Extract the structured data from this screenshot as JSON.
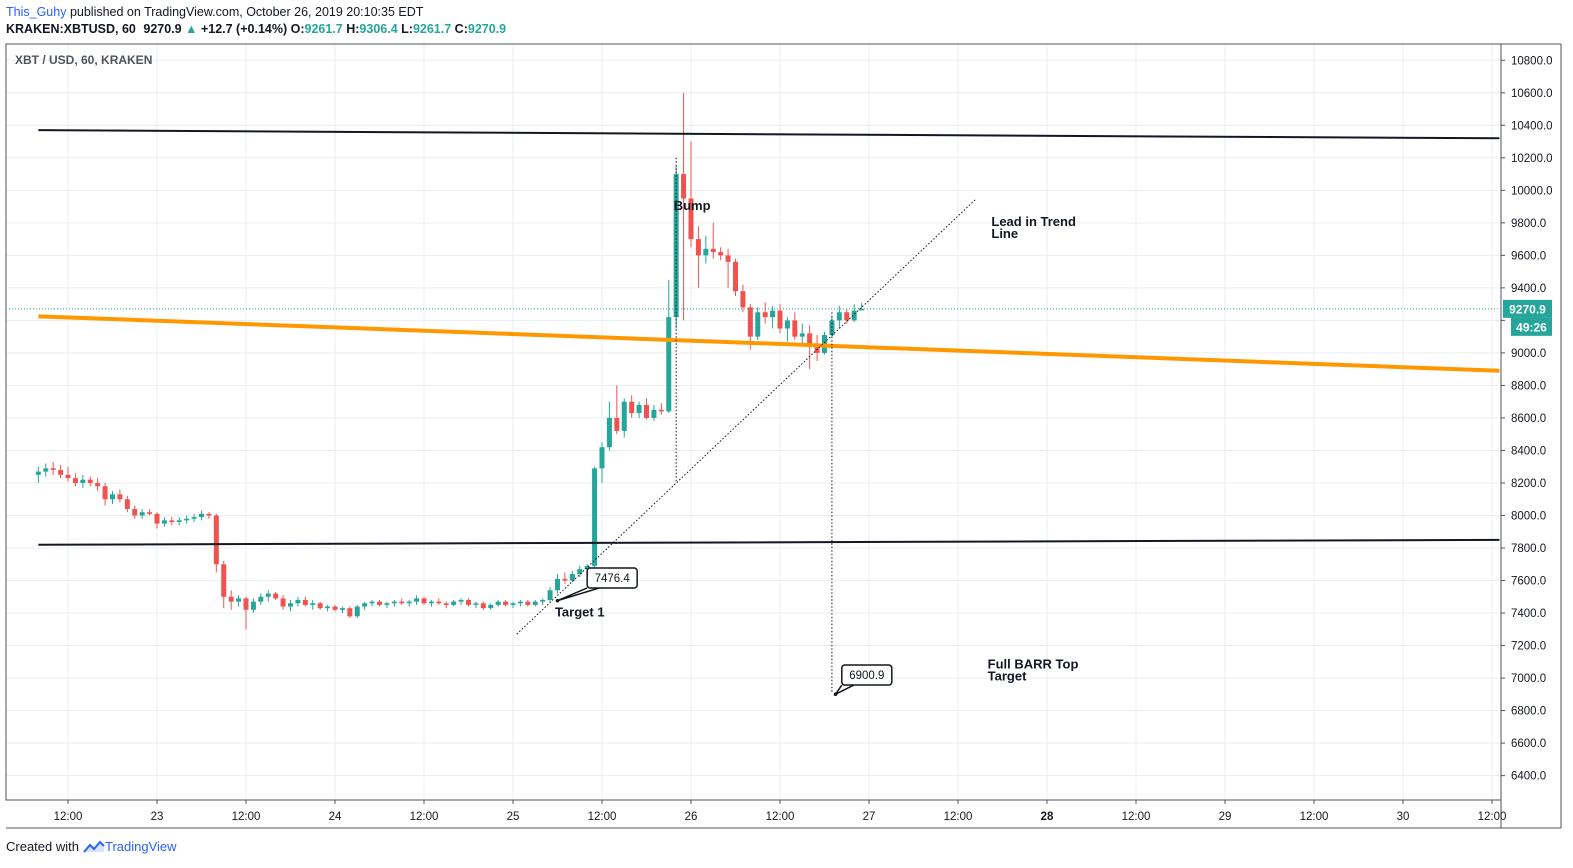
{
  "header": {
    "author": "This_Guhy",
    "published_text": "published on TradingView.com, October 26, 2019 20:10:35 EDT",
    "symbol_line": "KRAKEN:XBTUSD, 60",
    "last_price": "9270.9",
    "change_arrow": "▲",
    "change": "+12.7 (+0.14%)",
    "open_label": "O:",
    "open": "9261.7",
    "high_label": "H:",
    "high": "9306.4",
    "low_label": "L:",
    "low": "9261.7",
    "close_label": "C:",
    "close": "9270.9"
  },
  "footer": {
    "created_with": "Created with",
    "brand": "TradingView",
    "brand_icon": "tradingview-logo-icon"
  },
  "colors": {
    "up": "#26a69a",
    "down": "#ef5350",
    "orange_line": "#ff9800",
    "black_line": "#131722",
    "grid": "#e9eef2"
  },
  "chart_data": {
    "type": "candlestick",
    "title": "XBT / USD, 60, KRAKEN",
    "ylim": [
      6250,
      10900
    ],
    "y_ticks": [
      6400,
      6600,
      6800,
      7000,
      7200,
      7400,
      7600,
      7800,
      8000,
      8200,
      8400,
      8600,
      8800,
      9000,
      9200,
      9400,
      9600,
      9800,
      10000,
      10200,
      10400,
      10600,
      10800
    ],
    "y_tick_labels": [
      "6400.0",
      "6600.0",
      "6800.0",
      "7000.0",
      "7200.0",
      "7400.0",
      "7600.0",
      "7800.0",
      "8000.0",
      "8200.0",
      "8400.0",
      "8600.0",
      "8800.0",
      "9000.0",
      "9200.0",
      "9400.0",
      "9600.0",
      "9800.0",
      "10000.0",
      "10200.0",
      "10400.0",
      "10600.0",
      "10800.0"
    ],
    "x_ticks": [
      {
        "t": "2019-10-22 12:00",
        "label": "12:00",
        "bold": false
      },
      {
        "t": "2019-10-23 00:00",
        "label": "23",
        "bold": false
      },
      {
        "t": "2019-10-23 12:00",
        "label": "12:00",
        "bold": false
      },
      {
        "t": "2019-10-24 00:00",
        "label": "24",
        "bold": false
      },
      {
        "t": "2019-10-24 12:00",
        "label": "12:00",
        "bold": false
      },
      {
        "t": "2019-10-25 00:00",
        "label": "25",
        "bold": false
      },
      {
        "t": "2019-10-25 12:00",
        "label": "12:00",
        "bold": false
      },
      {
        "t": "2019-10-26 00:00",
        "label": "26",
        "bold": false
      },
      {
        "t": "2019-10-26 12:00",
        "label": "12:00",
        "bold": false
      },
      {
        "t": "2019-10-27 00:00",
        "label": "27",
        "bold": false
      },
      {
        "t": "2019-10-27 12:00",
        "label": "12:00",
        "bold": false
      },
      {
        "t": "2019-10-28 00:00",
        "label": "28",
        "bold": true
      },
      {
        "t": "2019-10-28 12:00",
        "label": "12:00",
        "bold": false
      },
      {
        "t": "2019-10-29 00:00",
        "label": "29",
        "bold": false
      },
      {
        "t": "2019-10-29 12:00",
        "label": "12:00",
        "bold": false
      },
      {
        "t": "2019-10-30 00:00",
        "label": "30",
        "bold": false
      },
      {
        "t": "2019-10-30 12:00",
        "label": "12:00",
        "bold": false
      }
    ],
    "last_price_label": "9270.9",
    "countdown_label": "49:26",
    "candles_start": "2019-10-22 08:00",
    "candles": [
      [
        8250,
        8300,
        8200,
        8270
      ],
      [
        8270,
        8320,
        8240,
        8290
      ],
      [
        8290,
        8330,
        8250,
        8280
      ],
      [
        8280,
        8310,
        8230,
        8250
      ],
      [
        8250,
        8300,
        8210,
        8230
      ],
      [
        8230,
        8260,
        8180,
        8200
      ],
      [
        8200,
        8250,
        8170,
        8220
      ],
      [
        8220,
        8240,
        8180,
        8200
      ],
      [
        8200,
        8230,
        8150,
        8180
      ],
      [
        8180,
        8200,
        8060,
        8100
      ],
      [
        8100,
        8150,
        8070,
        8130
      ],
      [
        8130,
        8160,
        8080,
        8100
      ],
      [
        8100,
        8120,
        8020,
        8040
      ],
      [
        8040,
        8060,
        7980,
        8000
      ],
      [
        8000,
        8040,
        7980,
        8020
      ],
      [
        8020,
        8040,
        8000,
        8010
      ],
      [
        8010,
        8020,
        7920,
        7950
      ],
      [
        7950,
        7990,
        7930,
        7970
      ],
      [
        7970,
        7990,
        7940,
        7960
      ],
      [
        7960,
        7990,
        7940,
        7970
      ],
      [
        7970,
        8000,
        7950,
        7980
      ],
      [
        7980,
        8010,
        7960,
        7990
      ],
      [
        7990,
        8030,
        7970,
        8010
      ],
      [
        8010,
        8020,
        7980,
        8000
      ],
      [
        8000,
        8010,
        7650,
        7700
      ],
      [
        7700,
        7720,
        7430,
        7500
      ],
      [
        7500,
        7540,
        7420,
        7470
      ],
      [
        7470,
        7510,
        7440,
        7490
      ],
      [
        7490,
        7500,
        7300,
        7420
      ],
      [
        7420,
        7490,
        7400,
        7470
      ],
      [
        7470,
        7520,
        7450,
        7500
      ],
      [
        7500,
        7540,
        7470,
        7520
      ],
      [
        7520,
        7530,
        7480,
        7490
      ],
      [
        7490,
        7510,
        7420,
        7440
      ],
      [
        7440,
        7480,
        7410,
        7460
      ],
      [
        7460,
        7500,
        7440,
        7480
      ],
      [
        7480,
        7500,
        7440,
        7450
      ],
      [
        7450,
        7480,
        7420,
        7460
      ],
      [
        7460,
        7470,
        7420,
        7430
      ],
      [
        7430,
        7450,
        7410,
        7440
      ],
      [
        7440,
        7450,
        7410,
        7420
      ],
      [
        7420,
        7440,
        7400,
        7430
      ],
      [
        7430,
        7440,
        7370,
        7380
      ],
      [
        7380,
        7450,
        7370,
        7440
      ],
      [
        7440,
        7470,
        7420,
        7460
      ],
      [
        7460,
        7480,
        7440,
        7470
      ],
      [
        7470,
        7480,
        7440,
        7450
      ],
      [
        7450,
        7470,
        7430,
        7460
      ],
      [
        7460,
        7480,
        7440,
        7470
      ],
      [
        7470,
        7490,
        7450,
        7460
      ],
      [
        7460,
        7480,
        7440,
        7470
      ],
      [
        7470,
        7510,
        7450,
        7490
      ],
      [
        7490,
        7500,
        7450,
        7460
      ],
      [
        7460,
        7480,
        7440,
        7470
      ],
      [
        7470,
        7490,
        7450,
        7460
      ],
      [
        7460,
        7470,
        7430,
        7450
      ],
      [
        7450,
        7480,
        7440,
        7470
      ],
      [
        7470,
        7490,
        7450,
        7480
      ],
      [
        7480,
        7490,
        7440,
        7450
      ],
      [
        7450,
        7470,
        7430,
        7460
      ],
      [
        7460,
        7470,
        7420,
        7430
      ],
      [
        7430,
        7460,
        7420,
        7450
      ],
      [
        7450,
        7480,
        7440,
        7470
      ],
      [
        7470,
        7480,
        7440,
        7450
      ],
      [
        7450,
        7470,
        7430,
        7460
      ],
      [
        7460,
        7480,
        7440,
        7470
      ],
      [
        7470,
        7480,
        7440,
        7450
      ],
      [
        7450,
        7480,
        7440,
        7470
      ],
      [
        7470,
        7490,
        7450,
        7480
      ],
      [
        7480,
        7560,
        7470,
        7540
      ],
      [
        7540,
        7640,
        7520,
        7610
      ],
      [
        7610,
        7650,
        7580,
        7600
      ],
      [
        7600,
        7660,
        7590,
        7640
      ],
      [
        7640,
        7690,
        7620,
        7670
      ],
      [
        7670,
        7700,
        7640,
        7690
      ],
      [
        7690,
        8300,
        7680,
        8290
      ],
      [
        8290,
        8450,
        8200,
        8420
      ],
      [
        8420,
        8700,
        8400,
        8600
      ],
      [
        8600,
        8800,
        8500,
        8520
      ],
      [
        8520,
        8720,
        8480,
        8700
      ],
      [
        8700,
        8740,
        8600,
        8630
      ],
      [
        8630,
        8700,
        8600,
        8680
      ],
      [
        8680,
        8720,
        8590,
        8600
      ],
      [
        8600,
        8680,
        8580,
        8650
      ],
      [
        8650,
        8690,
        8620,
        8640
      ],
      [
        8640,
        9450,
        8630,
        9220
      ],
      [
        9220,
        10150,
        9150,
        10100
      ],
      [
        10100,
        10600,
        9200,
        9950
      ],
      [
        9950,
        10300,
        9650,
        9700
      ],
      [
        9700,
        9780,
        9400,
        9600
      ],
      [
        9600,
        9720,
        9550,
        9640
      ],
      [
        9640,
        9800,
        9580,
        9620
      ],
      [
        9620,
        9650,
        9570,
        9600
      ],
      [
        9600,
        9640,
        9400,
        9560
      ],
      [
        9560,
        9580,
        9350,
        9380
      ],
      [
        9380,
        9420,
        9250,
        9280
      ],
      [
        9280,
        9300,
        9020,
        9100
      ],
      [
        9100,
        9280,
        9080,
        9250
      ],
      [
        9250,
        9310,
        9180,
        9220
      ],
      [
        9220,
        9290,
        9150,
        9260
      ],
      [
        9260,
        9300,
        9120,
        9150
      ],
      [
        9150,
        9220,
        9070,
        9200
      ],
      [
        9200,
        9250,
        9080,
        9100
      ],
      [
        9100,
        9180,
        9060,
        9120
      ],
      [
        9120,
        9170,
        8900,
        9050
      ],
      [
        9050,
        9110,
        8950,
        9000
      ],
      [
        9000,
        9130,
        8990,
        9110
      ],
      [
        9110,
        9230,
        9100,
        9200
      ],
      [
        9200,
        9290,
        9150,
        9250
      ],
      [
        9250,
        9270,
        9180,
        9200
      ],
      [
        9200,
        9300,
        9190,
        9260
      ],
      [
        9261.7,
        9306.4,
        9261.7,
        9270.9
      ]
    ],
    "trend_lines": [
      {
        "name": "upper-resistance",
        "color": "#131722",
        "from": [
          "2019-10-22 08:00",
          10370
        ],
        "to": [
          "2019-10-30 13:00",
          10320
        ]
      },
      {
        "name": "lower-support",
        "color": "#131722",
        "from": [
          "2019-10-22 08:00",
          7820
        ],
        "to": [
          "2019-10-30 13:00",
          7850
        ]
      },
      {
        "name": "orange-line",
        "color": "#ff9800",
        "from": [
          "2019-10-22 08:00",
          9225
        ],
        "to": [
          "2019-10-30 13:00",
          8890
        ]
      },
      {
        "name": "lead-in-trend-line",
        "color": "#131722",
        "dashed": true,
        "from": [
          "2019-10-25 00:30",
          7270
        ],
        "to": [
          "2019-10-27 14:30",
          9950
        ]
      }
    ],
    "projections": [
      {
        "name": "bump-height",
        "from": [
          "2019-10-25 22:00",
          10200
        ],
        "to": [
          "2019-10-25 22:00",
          8210
        ]
      },
      {
        "name": "barr-target-vertical",
        "from": [
          "2019-10-26 19:00",
          9250
        ],
        "to": [
          "2019-10-26 19:00",
          6910
        ]
      }
    ],
    "annotations": [
      {
        "name": "bump-label",
        "text": "Bump",
        "at": [
          "2019-10-25 21:40",
          9880
        ],
        "anchor": "start"
      },
      {
        "name": "lead-in-label",
        "text": "Lead in Trend",
        "text2": "Line",
        "at": [
          "2019-10-27 16:30",
          9780
        ],
        "anchor": "start"
      },
      {
        "name": "target1-label",
        "text": "Target 1",
        "at": [
          "2019-10-25 09:00",
          7380
        ],
        "anchor": "middle"
      },
      {
        "name": "barr-target-label",
        "text": "Full BARR Top",
        "text2": "Target",
        "at": [
          "2019-10-27 16:00",
          7060
        ],
        "anchor": "start"
      }
    ],
    "callouts": [
      {
        "name": "callout-7476",
        "text": "7476.4",
        "box": [
          "2019-10-25 10:00",
          7677
        ],
        "point": [
          "2019-10-25 06:00",
          7476
        ]
      },
      {
        "name": "callout-6900",
        "text": "6900.9",
        "box": [
          "2019-10-26 20:20",
          7080
        ],
        "point": [
          "2019-10-26 19:30",
          6901
        ]
      }
    ]
  }
}
